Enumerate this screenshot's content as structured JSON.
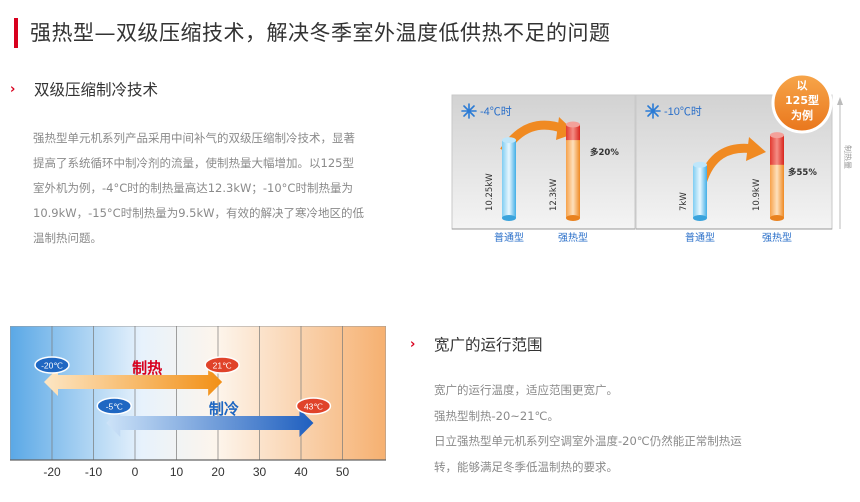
{
  "page_title": "强热型—双级压缩技术，解决冬季室外温度低供热不足的问题",
  "section1": {
    "heading": "双级压缩制冷技术",
    "lines": [
      "强热型单元机系列产品采用中间补气的双级压缩制冷技术，显著",
      "提高了系统循环中制冷剂的流量，使制热量大幅增加。以125型",
      "室外机为例，-4°C时的制热量高达12.3kW；-10°C时制热量为",
      "10.9kW，-15°C时制热量为9.5kW，有效的解决了寒冷地区的低",
      "温制热问题。"
    ]
  },
  "compare": {
    "badge": [
      "以",
      "125型",
      "为例"
    ],
    "side_label": "制热量",
    "panels": [
      {
        "temp": "-4℃时",
        "normal_value": "10.25kW",
        "strong_value": "12.3kW",
        "gain": "多20%",
        "normal_label": "普通型",
        "strong_label": "强热型"
      },
      {
        "temp": "-10℃时",
        "normal_value": "7kW",
        "strong_value": "10.9kW",
        "gain": "多55%",
        "normal_label": "普通型",
        "strong_label": "强热型"
      }
    ]
  },
  "section2": {
    "heading": "宽广的运行范围",
    "lines": [
      "宽广的运行温度，适应范围更宽广。",
      "强热型制热-20~21℃。",
      "日立强热型单元机系列空调室外温度-20℃仍然能正常制热运",
      "转，能够满足冬季低温制热的要求。"
    ]
  },
  "range": {
    "ticks": [
      "-20",
      "-10",
      "0",
      "10",
      "20",
      "30",
      "40",
      "50"
    ],
    "heating": {
      "label": "制热",
      "min": -20,
      "max": 21,
      "min_label": "-20℃",
      "max_label": "21℃"
    },
    "cooling": {
      "label": "制冷",
      "min": -5,
      "max": 43,
      "min_label": "-5℃",
      "max_label": "43℃"
    }
  },
  "colors": {
    "accent": "#d8001e",
    "heating": "#f29a1f",
    "cooling": "#1f67c2",
    "normal_bar": "#4fb5ea",
    "strong_bar": "#f08a2a"
  }
}
